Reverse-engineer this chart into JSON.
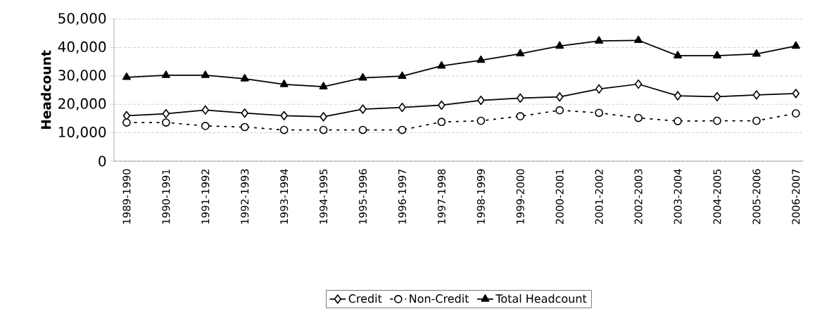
{
  "chart_data": {
    "type": "line",
    "ylabel": "Headcount",
    "categories": [
      "1989-1990",
      "1990-1991",
      "1991-1992",
      "1992-1993",
      "1993-1994",
      "1994-1995",
      "1995-1996",
      "1996-1997",
      "1997-1998",
      "1998-1999",
      "1999-2000",
      "2000-2001",
      "2001-2002",
      "2002-2003",
      "2003-2004",
      "2004-2005",
      "2005-2006",
      "2006-2007"
    ],
    "series": [
      {
        "name": "Credit",
        "color": "#000000",
        "marker": "diamond",
        "line_style": "solid",
        "values": [
          16000,
          16700,
          18000,
          16900,
          16000,
          15600,
          18300,
          18900,
          19700,
          21400,
          22200,
          22600,
          25400,
          27100,
          23000,
          22700,
          23300,
          23800
        ]
      },
      {
        "name": "Non-Credit",
        "color": "#000000",
        "marker": "circle",
        "line_style": "dotted",
        "values": [
          13600,
          13600,
          12400,
          12000,
          11000,
          11000,
          11000,
          11000,
          13800,
          14200,
          15800,
          17900,
          17000,
          15200,
          14100,
          14200,
          14200,
          16800
        ]
      },
      {
        "name": "Total Headcount",
        "color": "#000000",
        "marker": "triangle",
        "line_style": "solid",
        "values": [
          29500,
          30200,
          30200,
          29000,
          27000,
          26200,
          29300,
          29900,
          33500,
          35500,
          37800,
          40500,
          42300,
          42500,
          37100,
          37100,
          37700,
          40500
        ]
      }
    ],
    "ylim": [
      0,
      50000
    ],
    "yticks": [
      {
        "value": 0,
        "label": "0"
      },
      {
        "value": 10000,
        "label": "10,000"
      },
      {
        "value": 20000,
        "label": "20,000"
      },
      {
        "value": 30000,
        "label": "30,000"
      },
      {
        "value": 40000,
        "label": "40,000"
      },
      {
        "value": 50000,
        "label": "50,000"
      }
    ],
    "grid": "y",
    "legend": "bottom"
  }
}
